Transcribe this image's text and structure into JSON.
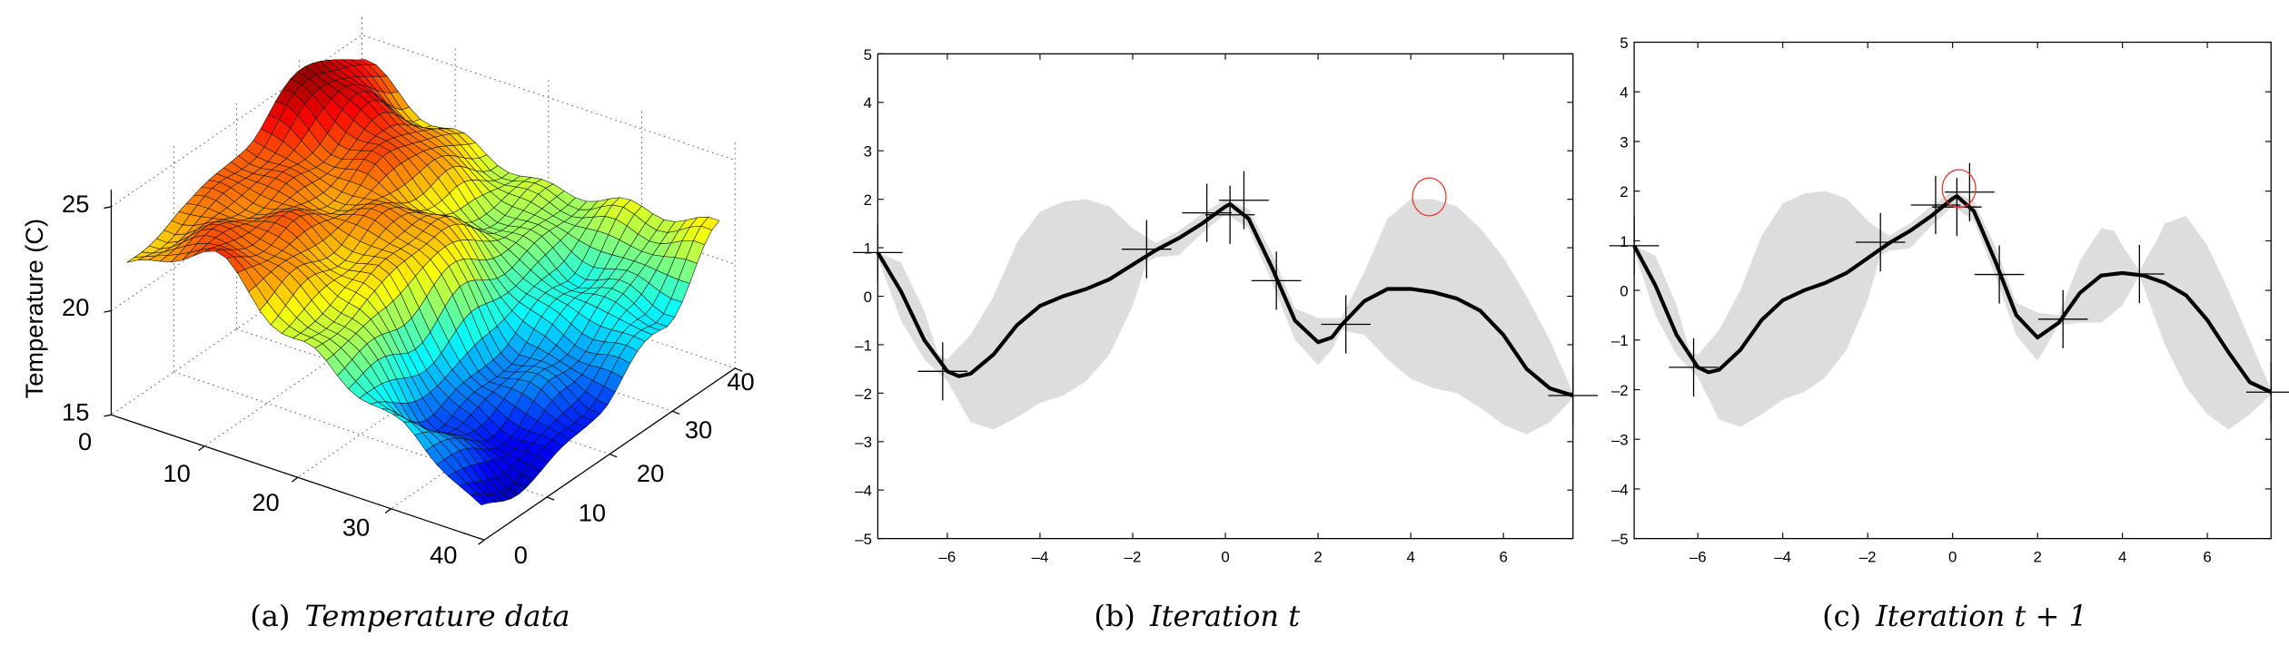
{
  "chart_data": [
    {
      "type": "surface",
      "caption_label": "(a)",
      "caption_title": "Temperature data",
      "zlabel": "Temperature (C)",
      "zticks": [
        "15",
        "20",
        "25"
      ],
      "zlim": [
        15,
        26
      ],
      "xticks": [
        "0",
        "10",
        "20",
        "30",
        "40"
      ],
      "yticks": [
        "0",
        "10",
        "20",
        "30",
        "40"
      ],
      "grid": true,
      "colormap": "jet",
      "x": [
        0,
        10,
        20,
        30,
        40
      ],
      "y": [
        0,
        10,
        20,
        30,
        40
      ],
      "z": [
        [
          22,
          23,
          24,
          26,
          24
        ],
        [
          24,
          23.5,
          23,
          24,
          22
        ],
        [
          21,
          22,
          23,
          21,
          21
        ],
        [
          19,
          17,
          18,
          19.5,
          21.5
        ],
        [
          16,
          15.8,
          17,
          19,
          22
        ]
      ]
    },
    {
      "type": "line",
      "caption_label": "(b)",
      "caption_title": "Iteration t",
      "xlim": [
        -7.5,
        7.5
      ],
      "ylim": [
        -5,
        5
      ],
      "xticks": [
        "–6",
        "–4",
        "–2",
        "0",
        "2",
        "4",
        "6"
      ],
      "xtick_values": [
        -6,
        -4,
        -2,
        0,
        2,
        4,
        6
      ],
      "yticks": [
        "–5",
        "–4",
        "–3",
        "–2",
        "–1",
        "0",
        "1",
        "2",
        "3",
        "4",
        "5"
      ],
      "ytick_values": [
        -5,
        -4,
        -3,
        -2,
        -1,
        0,
        1,
        2,
        3,
        4,
        5
      ],
      "mean": [
        [
          -7.5,
          0.9
        ],
        [
          -7,
          0.1
        ],
        [
          -6.5,
          -0.9
        ],
        [
          -6,
          -1.55
        ],
        [
          -5.75,
          -1.65
        ],
        [
          -5.5,
          -1.6
        ],
        [
          -5,
          -1.2
        ],
        [
          -4.5,
          -0.6
        ],
        [
          -4,
          -0.2
        ],
        [
          -3.5,
          0
        ],
        [
          -3,
          0.15
        ],
        [
          -2.5,
          0.35
        ],
        [
          -2,
          0.65
        ],
        [
          -1.5,
          0.95
        ],
        [
          -1,
          1.2
        ],
        [
          -0.5,
          1.5
        ],
        [
          0,
          1.85
        ],
        [
          0.1,
          1.9
        ],
        [
          0.5,
          1.6
        ],
        [
          1,
          0.6
        ],
        [
          1.5,
          -0.5
        ],
        [
          2,
          -0.95
        ],
        [
          2.3,
          -0.85
        ],
        [
          2.5,
          -0.6
        ],
        [
          3,
          -0.1
        ],
        [
          3.5,
          0.15
        ],
        [
          4,
          0.15
        ],
        [
          4.5,
          0.08
        ],
        [
          5,
          -0.05
        ],
        [
          5.5,
          -0.3
        ],
        [
          6,
          -0.8
        ],
        [
          6.5,
          -1.5
        ],
        [
          7,
          -1.9
        ],
        [
          7.5,
          -2.05
        ]
      ],
      "upper": [
        [
          -7.5,
          0.9
        ],
        [
          -7,
          0.7
        ],
        [
          -6.5,
          -0.3
        ],
        [
          -6.2,
          -1.2
        ],
        [
          -6,
          -1.3
        ],
        [
          -5.5,
          -0.8
        ],
        [
          -5,
          0
        ],
        [
          -4.5,
          1.1
        ],
        [
          -4,
          1.75
        ],
        [
          -3.5,
          1.95
        ],
        [
          -3,
          2.0
        ],
        [
          -2.5,
          1.85
        ],
        [
          -2,
          1.4
        ],
        [
          -1.5,
          1.1
        ],
        [
          -1,
          1.35
        ],
        [
          -0.5,
          1.7
        ],
        [
          0,
          2.0
        ],
        [
          0.5,
          1.8
        ],
        [
          1,
          0.9
        ],
        [
          1.5,
          -0.25
        ],
        [
          2,
          -0.45
        ],
        [
          2.5,
          -0.45
        ],
        [
          3,
          0.5
        ],
        [
          3.5,
          1.6
        ],
        [
          4,
          2.0
        ],
        [
          4.5,
          2.0
        ],
        [
          5,
          1.85
        ],
        [
          5.5,
          1.4
        ],
        [
          6,
          0.8
        ],
        [
          6.5,
          0
        ],
        [
          7,
          -0.9
        ],
        [
          7.5,
          -2.0
        ]
      ],
      "lower": [
        [
          -7.5,
          0.8
        ],
        [
          -7,
          -0.5
        ],
        [
          -6.5,
          -1.3
        ],
        [
          -6,
          -1.75
        ],
        [
          -5.5,
          -2.6
        ],
        [
          -5,
          -2.75
        ],
        [
          -4.5,
          -2.5
        ],
        [
          -4,
          -2.2
        ],
        [
          -3.5,
          -2.05
        ],
        [
          -3,
          -1.75
        ],
        [
          -2.5,
          -1.2
        ],
        [
          -2,
          -0.2
        ],
        [
          -1.7,
          0.7
        ],
        [
          -1.5,
          0.8
        ],
        [
          -1,
          0.85
        ],
        [
          -0.5,
          1.3
        ],
        [
          0,
          1.7
        ],
        [
          0.5,
          1.4
        ],
        [
          1,
          0.3
        ],
        [
          1.5,
          -0.9
        ],
        [
          2,
          -1.42
        ],
        [
          2.3,
          -1.1
        ],
        [
          2.5,
          -0.7
        ],
        [
          3,
          -0.8
        ],
        [
          3.5,
          -1.3
        ],
        [
          4,
          -1.7
        ],
        [
          4.5,
          -1.9
        ],
        [
          5,
          -2.0
        ],
        [
          5.5,
          -2.3
        ],
        [
          6,
          -2.65
        ],
        [
          6.5,
          -2.85
        ],
        [
          7,
          -2.6
        ],
        [
          7.5,
          -2.1
        ]
      ],
      "observations": [
        [
          -7.5,
          0.9
        ],
        [
          -6.1,
          -1.55
        ],
        [
          -1.7,
          0.97
        ],
        [
          -0.4,
          1.72
        ],
        [
          0.1,
          1.68
        ],
        [
          0.4,
          1.98
        ],
        [
          1.1,
          0.32
        ],
        [
          2.6,
          -0.58
        ],
        [
          7.5,
          -2.05
        ]
      ],
      "next_sample": [
        4.4,
        2.05
      ],
      "colors": {
        "band": "#dddddd",
        "mean": "#000000",
        "marker": "#000000",
        "next": "#e8392f"
      }
    },
    {
      "type": "line",
      "caption_label": "(c)",
      "caption_title": "Iteration t + 1",
      "xlim": [
        -7.5,
        7.5
      ],
      "ylim": [
        -5,
        5
      ],
      "xticks": [
        "–6",
        "–4",
        "–2",
        "0",
        "2",
        "4",
        "6"
      ],
      "xtick_values": [
        -6,
        -4,
        -2,
        0,
        2,
        4,
        6
      ],
      "yticks": [
        "–5",
        "–4",
        "–3",
        "–2",
        "–1",
        "0",
        "1",
        "2",
        "3",
        "4",
        "5"
      ],
      "ytick_values": [
        -5,
        -4,
        -3,
        -2,
        -1,
        0,
        1,
        2,
        3,
        4,
        5
      ],
      "mean": [
        [
          -7.5,
          0.9
        ],
        [
          -7,
          0.1
        ],
        [
          -6.5,
          -0.9
        ],
        [
          -6,
          -1.55
        ],
        [
          -5.75,
          -1.65
        ],
        [
          -5.5,
          -1.6
        ],
        [
          -5,
          -1.2
        ],
        [
          -4.5,
          -0.6
        ],
        [
          -4,
          -0.2
        ],
        [
          -3.5,
          0
        ],
        [
          -3,
          0.15
        ],
        [
          -2.5,
          0.35
        ],
        [
          -2,
          0.65
        ],
        [
          -1.5,
          0.95
        ],
        [
          -1,
          1.2
        ],
        [
          -0.5,
          1.5
        ],
        [
          0,
          1.85
        ],
        [
          0.1,
          1.9
        ],
        [
          0.5,
          1.6
        ],
        [
          1,
          0.6
        ],
        [
          1.5,
          -0.5
        ],
        [
          2,
          -0.95
        ],
        [
          2.5,
          -0.65
        ],
        [
          3,
          -0.05
        ],
        [
          3.5,
          0.3
        ],
        [
          4,
          0.35
        ],
        [
          4.5,
          0.3
        ],
        [
          5,
          0.15
        ],
        [
          5.5,
          -0.1
        ],
        [
          6,
          -0.6
        ],
        [
          6.5,
          -1.25
        ],
        [
          7,
          -1.85
        ],
        [
          7.5,
          -2.05
        ]
      ],
      "upper": [
        [
          -7.5,
          0.9
        ],
        [
          -7,
          0.7
        ],
        [
          -6.5,
          -0.3
        ],
        [
          -6.2,
          -1.2
        ],
        [
          -6,
          -1.3
        ],
        [
          -5.5,
          -0.8
        ],
        [
          -5,
          0
        ],
        [
          -4.5,
          1.1
        ],
        [
          -4,
          1.75
        ],
        [
          -3.5,
          1.95
        ],
        [
          -3,
          2.0
        ],
        [
          -2.5,
          1.85
        ],
        [
          -2,
          1.4
        ],
        [
          -1.5,
          1.1
        ],
        [
          -1,
          1.35
        ],
        [
          -0.5,
          1.7
        ],
        [
          0,
          2.0
        ],
        [
          0.5,
          1.8
        ],
        [
          1,
          0.9
        ],
        [
          1.5,
          -0.25
        ],
        [
          2,
          -0.45
        ],
        [
          2.5,
          -0.5
        ],
        [
          3,
          0.6
        ],
        [
          3.5,
          1.25
        ],
        [
          3.8,
          1.2
        ],
        [
          4,
          0.9
        ],
        [
          4.4,
          0.4
        ],
        [
          4.8,
          1.0
        ],
        [
          5,
          1.35
        ],
        [
          5.5,
          1.5
        ],
        [
          6,
          0.9
        ],
        [
          6.5,
          0
        ],
        [
          7,
          -1.0
        ],
        [
          7.5,
          -2.0
        ]
      ],
      "lower": [
        [
          -7.5,
          0.8
        ],
        [
          -7,
          -0.5
        ],
        [
          -6.5,
          -1.3
        ],
        [
          -6,
          -1.75
        ],
        [
          -5.5,
          -2.6
        ],
        [
          -5,
          -2.75
        ],
        [
          -4.5,
          -2.5
        ],
        [
          -4,
          -2.2
        ],
        [
          -3.5,
          -2.05
        ],
        [
          -3,
          -1.75
        ],
        [
          -2.5,
          -1.2
        ],
        [
          -2,
          -0.2
        ],
        [
          -1.7,
          0.7
        ],
        [
          -1.5,
          0.8
        ],
        [
          -1,
          0.85
        ],
        [
          -0.5,
          1.3
        ],
        [
          0,
          1.7
        ],
        [
          0.5,
          1.4
        ],
        [
          1,
          0.3
        ],
        [
          1.5,
          -0.9
        ],
        [
          2,
          -1.42
        ],
        [
          2.5,
          -0.7
        ],
        [
          3,
          -0.65
        ],
        [
          3.5,
          -0.65
        ],
        [
          4,
          -0.3
        ],
        [
          4.4,
          0.3
        ],
        [
          4.7,
          -0.4
        ],
        [
          5,
          -1.1
        ],
        [
          5.5,
          -1.95
        ],
        [
          6,
          -2.5
        ],
        [
          6.5,
          -2.8
        ],
        [
          7,
          -2.5
        ],
        [
          7.5,
          -2.1
        ]
      ],
      "observations": [
        [
          -7.5,
          0.9
        ],
        [
          -6.1,
          -1.55
        ],
        [
          -1.7,
          0.97
        ],
        [
          -0.4,
          1.72
        ],
        [
          0.1,
          1.68
        ],
        [
          0.4,
          1.98
        ],
        [
          1.1,
          0.32
        ],
        [
          2.6,
          -0.58
        ],
        [
          4.4,
          0.33
        ],
        [
          7.5,
          -2.05
        ]
      ],
      "next_sample": [
        0.15,
        2.05
      ],
      "colors": {
        "band": "#dddddd",
        "mean": "#000000",
        "marker": "#000000",
        "next": "#e8392f"
      }
    }
  ]
}
